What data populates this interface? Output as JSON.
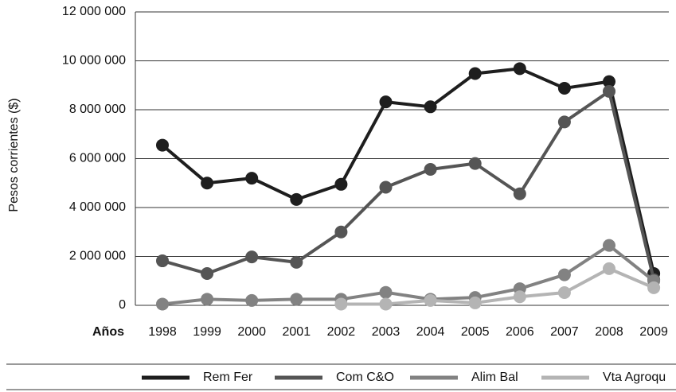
{
  "chart_data": {
    "type": "line",
    "y_label": "Pesos corrientes ($)",
    "x_label": "Años",
    "categories": [
      "1998",
      "1999",
      "2000",
      "2001",
      "2002",
      "2003",
      "2004",
      "2005",
      "2006",
      "2007",
      "2008",
      "2009"
    ],
    "series": [
      {
        "name": "Rem Fer",
        "color": "#1e1e1e",
        "values": [
          6550000,
          5000000,
          5200000,
          4330000,
          4950000,
          8320000,
          8120000,
          9480000,
          9680000,
          8880000,
          9150000,
          1300000
        ]
      },
      {
        "name": "Com C&O",
        "color": "#555555",
        "values": [
          1820000,
          1300000,
          1980000,
          1760000,
          3000000,
          4830000,
          5560000,
          5800000,
          4560000,
          7500000,
          8750000,
          1050000
        ]
      },
      {
        "name": "Alim Bal",
        "color": "#828282",
        "values": [
          50000,
          250000,
          200000,
          250000,
          250000,
          530000,
          250000,
          320000,
          680000,
          1250000,
          2450000,
          1000000
        ]
      },
      {
        "name": "Vta Agroqu",
        "color": "#b4b4b4",
        "values": [
          null,
          null,
          null,
          null,
          50000,
          50000,
          200000,
          100000,
          350000,
          520000,
          1500000,
          720000
        ]
      }
    ],
    "ylim": [
      0,
      12000000
    ],
    "yticks": [
      {
        "value": 0,
        "label": "0"
      },
      {
        "value": 2000000,
        "label": "2 000 000"
      },
      {
        "value": 4000000,
        "label": "4 000 000"
      },
      {
        "value": 6000000,
        "label": "6 000 000"
      },
      {
        "value": 8000000,
        "label": "8 000 000"
      },
      {
        "value": 10000000,
        "label": "10 000 000"
      },
      {
        "value": 12000000,
        "label": "12 000 000"
      }
    ],
    "grid": true,
    "legend": "bottom"
  }
}
